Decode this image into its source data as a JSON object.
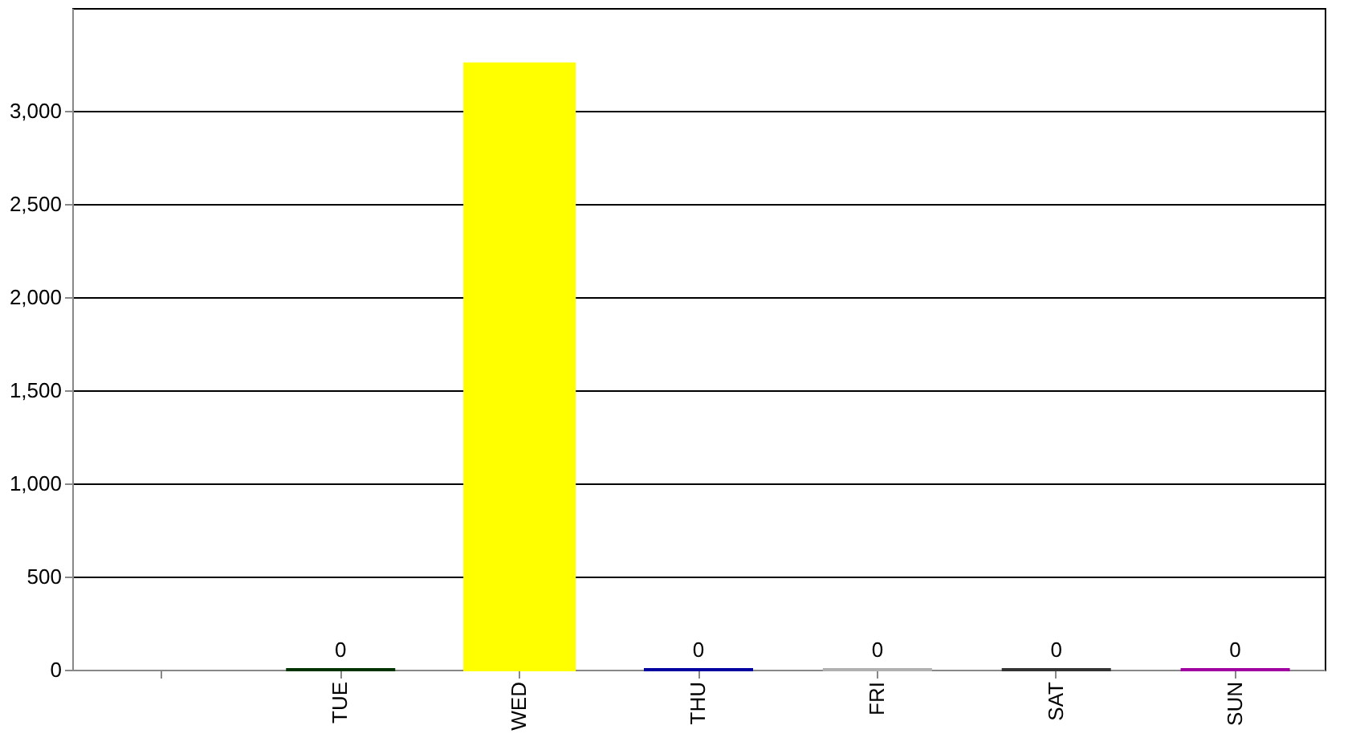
{
  "chart_data": {
    "type": "bar",
    "categories": [
      null,
      "TUE",
      "WED",
      "THU",
      "FRI",
      "SAT",
      "SUN"
    ],
    "values": [
      null,
      0,
      3250,
      0,
      0,
      0,
      0
    ],
    "colors": [
      "#808080",
      "#003300",
      "#ffff00",
      "#0000a0",
      "#b0b0b0",
      "#333333",
      "#a000a0"
    ],
    "value_labels": [
      null,
      "0",
      null,
      "0",
      "0",
      "0",
      "0"
    ],
    "ylim": [
      0,
      3550
    ],
    "yticks": [
      0,
      500,
      {
        "value": 1000,
        "label": "1,000"
      },
      {
        "value": 1500,
        "label": "1,500"
      },
      {
        "value": 2000,
        "label": "2,000"
      },
      {
        "value": 2500,
        "label": "2,500"
      },
      {
        "value": 3000,
        "label": "3,000"
      }
    ],
    "grid": "y"
  }
}
